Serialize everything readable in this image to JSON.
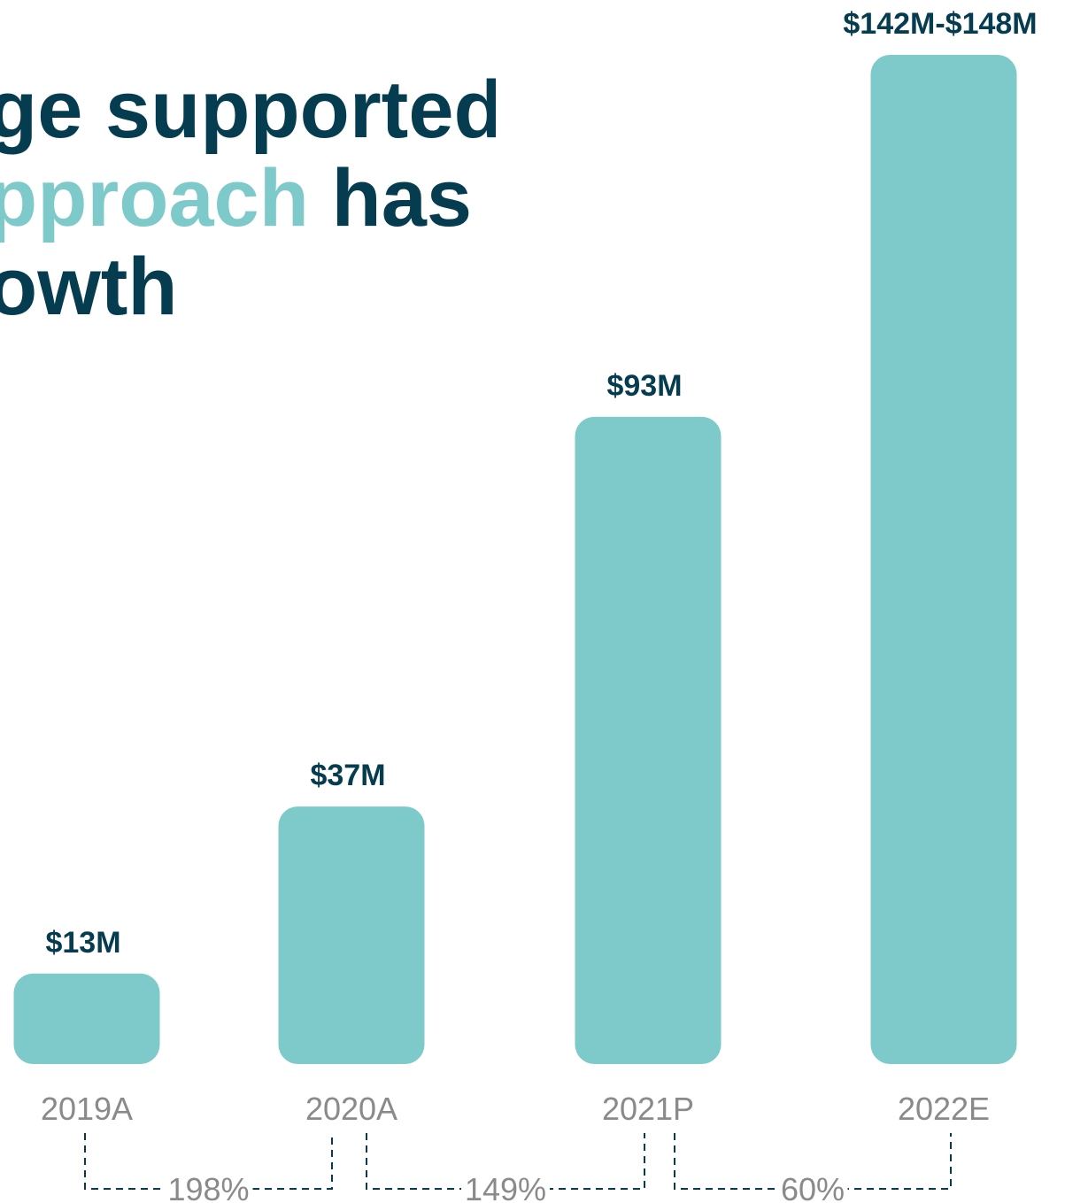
{
  "headline": {
    "line1": "ge supported",
    "line2_accent": "pproach",
    "line2_rest": "has",
    "line3": "owth"
  },
  "colors": {
    "bar": "#7ec9c9",
    "value_label": "#053c50",
    "category_label": "#8a8a8a",
    "headline": "#053c50",
    "headline_accent": "#7ec9c9",
    "bracket": "#053c50"
  },
  "chart_data": {
    "type": "bar",
    "categories": [
      "2019A",
      "2020A",
      "2021P",
      "2022E"
    ],
    "values": [
      13,
      37,
      93,
      145
    ],
    "ranges": [
      null,
      null,
      null,
      [
        142,
        148
      ]
    ],
    "data_labels": [
      "$13M",
      "$37M",
      "$93M",
      "$142M-$148M"
    ],
    "ylim": [
      0,
      145
    ],
    "growth": [
      {
        "from": "2019A",
        "to": "2020A",
        "label": "198%"
      },
      {
        "from": "2020A",
        "to": "2021P",
        "label": "149%"
      },
      {
        "from": "2021P",
        "to": "2022E",
        "label": "60%"
      }
    ],
    "grid": false
  }
}
